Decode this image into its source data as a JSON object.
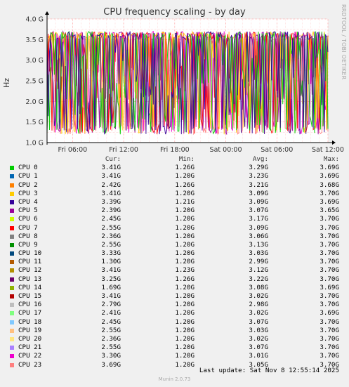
{
  "title": "CPU frequency scaling - by day",
  "side_label": "RRDTOOL / TOBI OETIKER",
  "footer": "Last update: Sat Nov  8 12:55:14 2025",
  "munin": "Munin 2.0.73",
  "legend_header": {
    "cur": "Cur:",
    "min": "Min:",
    "avg": "Avg:",
    "max": "Max:"
  },
  "legend": [
    {
      "name": "CPU 0",
      "color": "#00cc00",
      "cur": "3.41G",
      "min": "1.26G",
      "avg": "3.29G",
      "max": "3.69G"
    },
    {
      "name": "CPU 1",
      "color": "#0066b3",
      "cur": "3.41G",
      "min": "1.20G",
      "avg": "3.23G",
      "max": "3.69G"
    },
    {
      "name": "CPU 2",
      "color": "#ff8000",
      "cur": "2.42G",
      "min": "1.26G",
      "avg": "3.21G",
      "max": "3.68G"
    },
    {
      "name": "CPU 3",
      "color": "#ffcc00",
      "cur": "3.41G",
      "min": "1.20G",
      "avg": "3.09G",
      "max": "3.70G"
    },
    {
      "name": "CPU 4",
      "color": "#330099",
      "cur": "3.39G",
      "min": "1.21G",
      "avg": "3.09G",
      "max": "3.69G"
    },
    {
      "name": "CPU 5",
      "color": "#990099",
      "cur": "2.39G",
      "min": "1.20G",
      "avg": "3.07G",
      "max": "3.65G"
    },
    {
      "name": "CPU 6",
      "color": "#ccff00",
      "cur": "2.45G",
      "min": "1.20G",
      "avg": "3.17G",
      "max": "3.70G"
    },
    {
      "name": "CPU 7",
      "color": "#ff0000",
      "cur": "2.55G",
      "min": "1.20G",
      "avg": "3.09G",
      "max": "3.70G"
    },
    {
      "name": "CPU 8",
      "color": "#808080",
      "cur": "2.36G",
      "min": "1.20G",
      "avg": "3.06G",
      "max": "3.70G"
    },
    {
      "name": "CPU 9",
      "color": "#008f00",
      "cur": "2.55G",
      "min": "1.20G",
      "avg": "3.13G",
      "max": "3.70G"
    },
    {
      "name": "CPU 10",
      "color": "#00487d",
      "cur": "3.33G",
      "min": "1.20G",
      "avg": "3.03G",
      "max": "3.70G"
    },
    {
      "name": "CPU 11",
      "color": "#b35a00",
      "cur": "1.30G",
      "min": "1.20G",
      "avg": "2.99G",
      "max": "3.70G"
    },
    {
      "name": "CPU 12",
      "color": "#b38f00",
      "cur": "3.41G",
      "min": "1.23G",
      "avg": "3.12G",
      "max": "3.70G"
    },
    {
      "name": "CPU 13",
      "color": "#6b006b",
      "cur": "3.25G",
      "min": "1.26G",
      "avg": "3.22G",
      "max": "3.70G"
    },
    {
      "name": "CPU 14",
      "color": "#8fb300",
      "cur": "1.69G",
      "min": "1.20G",
      "avg": "3.08G",
      "max": "3.69G"
    },
    {
      "name": "CPU 15",
      "color": "#b30000",
      "cur": "3.41G",
      "min": "1.20G",
      "avg": "3.02G",
      "max": "3.70G"
    },
    {
      "name": "CPU 16",
      "color": "#bebebe",
      "cur": "2.79G",
      "min": "1.20G",
      "avg": "2.98G",
      "max": "3.70G"
    },
    {
      "name": "CPU 17",
      "color": "#80ff80",
      "cur": "2.41G",
      "min": "1.20G",
      "avg": "3.02G",
      "max": "3.69G"
    },
    {
      "name": "CPU 18",
      "color": "#80c9ff",
      "cur": "2.45G",
      "min": "1.20G",
      "avg": "3.07G",
      "max": "3.70G"
    },
    {
      "name": "CPU 19",
      "color": "#ffc080",
      "cur": "2.55G",
      "min": "1.20G",
      "avg": "3.03G",
      "max": "3.70G"
    },
    {
      "name": "CPU 20",
      "color": "#ffe680",
      "cur": "2.36G",
      "min": "1.20G",
      "avg": "3.02G",
      "max": "3.70G"
    },
    {
      "name": "CPU 21",
      "color": "#aa80ff",
      "cur": "2.55G",
      "min": "1.20G",
      "avg": "3.07G",
      "max": "3.70G"
    },
    {
      "name": "CPU 22",
      "color": "#ee00cc",
      "cur": "3.30G",
      "min": "1.20G",
      "avg": "3.01G",
      "max": "3.70G"
    },
    {
      "name": "CPU 23",
      "color": "#ff8080",
      "cur": "3.69G",
      "min": "1.20G",
      "avg": "3.05G",
      "max": "3.70G"
    }
  ],
  "chart_data": {
    "type": "line",
    "title": "CPU frequency scaling - by day",
    "ylabel": "Hz",
    "ylim": [
      1.0,
      4.0
    ],
    "yticks": [
      "1.0 G",
      "1.5 G",
      "2.0 G",
      "2.5 G",
      "3.0 G",
      "3.5 G",
      "4.0 G"
    ],
    "ytick_values": [
      1.0,
      1.5,
      2.0,
      2.5,
      3.0,
      3.5,
      4.0
    ],
    "xlim": [
      0,
      33
    ],
    "xticks": [
      "Fri 06:00",
      "Fri 12:00",
      "Fri 18:00",
      "Sat 00:00",
      "Sat 06:00",
      "Sat 12:00"
    ],
    "xtick_values": [
      3,
      9,
      15,
      21,
      27,
      33
    ],
    "grid": true,
    "dominant_colors": [
      "#ee00cc",
      "#ff8080",
      "#990099",
      "#ff0000",
      "#ffcc00",
      "#00cc00",
      "#330099"
    ]
  }
}
